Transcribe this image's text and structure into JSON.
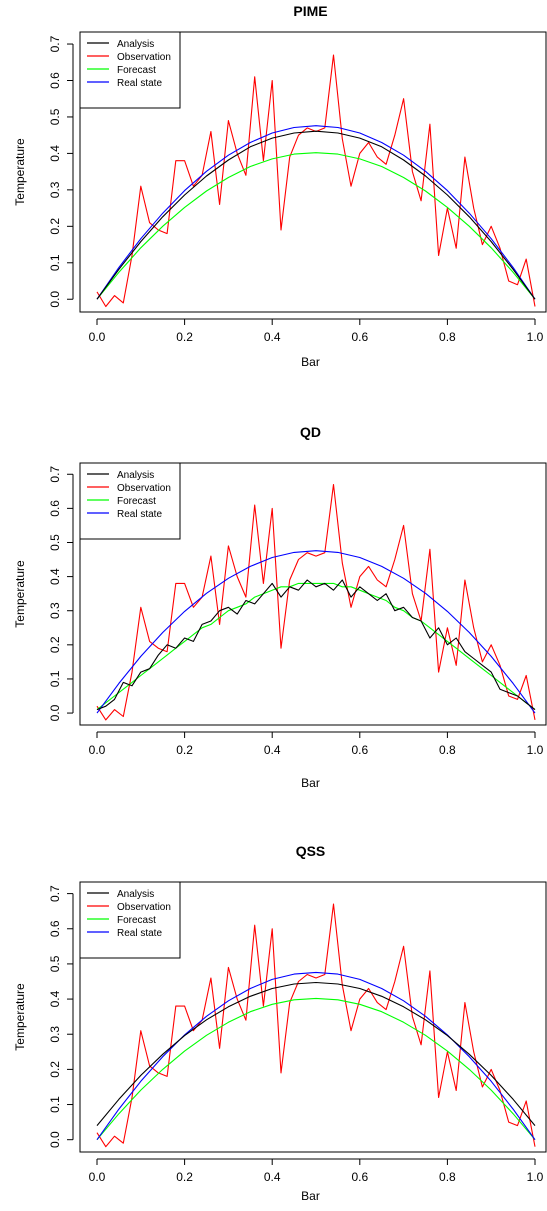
{
  "chart_data": [
    {
      "type": "line",
      "title": "PIME",
      "xlabel": "Bar",
      "ylabel": "Temperature",
      "xlim": [
        0,
        1
      ],
      "ylim": [
        0,
        0.72
      ],
      "xticks": [
        "0.0",
        "0.2",
        "0.4",
        "0.6",
        "0.8",
        "1.0"
      ],
      "yticks": [
        "0.0",
        "0.1",
        "0.2",
        "0.3",
        "0.4",
        "0.5",
        "0.6",
        "0.7"
      ],
      "legend_position": "top-left",
      "grid": false,
      "series": [
        {
          "name": "Analysis",
          "color": "#000000",
          "x": [
            0,
            0.05,
            0.1,
            0.15,
            0.2,
            0.25,
            0.3,
            0.35,
            0.4,
            0.45,
            0.5,
            0.55,
            0.6,
            0.65,
            0.7,
            0.75,
            0.8,
            0.85,
            0.9,
            0.95,
            1
          ],
          "y": [
            0,
            0.082,
            0.158,
            0.226,
            0.286,
            0.338,
            0.382,
            0.418,
            0.442,
            0.456,
            0.461,
            0.456,
            0.442,
            0.418,
            0.382,
            0.338,
            0.286,
            0.226,
            0.158,
            0.082,
            0
          ]
        },
        {
          "name": "Observation",
          "color": "#ff0000",
          "x": [
            0,
            0.02,
            0.04,
            0.06,
            0.08,
            0.1,
            0.12,
            0.14,
            0.16,
            0.18,
            0.2,
            0.22,
            0.24,
            0.26,
            0.28,
            0.3,
            0.32,
            0.34,
            0.36,
            0.38,
            0.4,
            0.42,
            0.44,
            0.46,
            0.48,
            0.5,
            0.52,
            0.54,
            0.56,
            0.58,
            0.6,
            0.62,
            0.64,
            0.66,
            0.68,
            0.7,
            0.72,
            0.74,
            0.76,
            0.78,
            0.8,
            0.82,
            0.84,
            0.86,
            0.88,
            0.9,
            0.92,
            0.94,
            0.96,
            0.98,
            1
          ],
          "y": [
            0.02,
            -0.02,
            0.01,
            -0.01,
            0.12,
            0.31,
            0.21,
            0.19,
            0.18,
            0.38,
            0.38,
            0.31,
            0.34,
            0.46,
            0.26,
            0.49,
            0.4,
            0.34,
            0.61,
            0.38,
            0.6,
            0.19,
            0.39,
            0.45,
            0.47,
            0.46,
            0.47,
            0.67,
            0.44,
            0.31,
            0.4,
            0.43,
            0.39,
            0.37,
            0.45,
            0.55,
            0.35,
            0.27,
            0.48,
            0.12,
            0.25,
            0.14,
            0.39,
            0.25,
            0.15,
            0.2,
            0.14,
            0.05,
            0.04,
            0.11,
            -0.02
          ]
        },
        {
          "name": "Forecast",
          "color": "#00ff00",
          "x": [
            0,
            0.05,
            0.1,
            0.15,
            0.2,
            0.25,
            0.3,
            0.35,
            0.4,
            0.45,
            0.5,
            0.55,
            0.6,
            0.65,
            0.7,
            0.75,
            0.8,
            0.85,
            0.9,
            0.95,
            1
          ],
          "y": [
            0,
            0.074,
            0.141,
            0.2,
            0.252,
            0.297,
            0.334,
            0.364,
            0.385,
            0.398,
            0.402,
            0.398,
            0.385,
            0.364,
            0.334,
            0.297,
            0.252,
            0.2,
            0.141,
            0.074,
            0
          ]
        },
        {
          "name": "Real state",
          "color": "#0000ff",
          "x": [
            0,
            0.05,
            0.1,
            0.15,
            0.2,
            0.25,
            0.3,
            0.35,
            0.4,
            0.45,
            0.5,
            0.55,
            0.6,
            0.65,
            0.7,
            0.75,
            0.8,
            0.85,
            0.9,
            0.95,
            1
          ],
          "y": [
            0,
            0.087,
            0.166,
            0.236,
            0.298,
            0.351,
            0.395,
            0.43,
            0.456,
            0.471,
            0.476,
            0.471,
            0.456,
            0.43,
            0.395,
            0.351,
            0.298,
            0.236,
            0.166,
            0.087,
            0
          ]
        }
      ]
    },
    {
      "type": "line",
      "title": "QD",
      "xlabel": "Bar",
      "ylabel": "Temperature",
      "xlim": [
        0,
        1
      ],
      "ylim": [
        0,
        0.72
      ],
      "xticks": [
        "0.0",
        "0.2",
        "0.4",
        "0.6",
        "0.8",
        "1.0"
      ],
      "yticks": [
        "0.0",
        "0.1",
        "0.2",
        "0.3",
        "0.4",
        "0.5",
        "0.6",
        "0.7"
      ],
      "legend_position": "top-left",
      "grid": false,
      "series": [
        {
          "name": "Analysis",
          "color": "#000000",
          "x": [
            0,
            0.02,
            0.04,
            0.06,
            0.08,
            0.1,
            0.12,
            0.14,
            0.16,
            0.18,
            0.2,
            0.22,
            0.24,
            0.26,
            0.28,
            0.3,
            0.32,
            0.34,
            0.36,
            0.38,
            0.4,
            0.42,
            0.44,
            0.46,
            0.48,
            0.5,
            0.52,
            0.54,
            0.56,
            0.58,
            0.6,
            0.62,
            0.64,
            0.66,
            0.68,
            0.7,
            0.72,
            0.74,
            0.76,
            0.78,
            0.8,
            0.82,
            0.84,
            0.86,
            0.88,
            0.9,
            0.92,
            0.94,
            0.96,
            0.98,
            1
          ],
          "y": [
            0.01,
            0.02,
            0.04,
            0.09,
            0.08,
            0.12,
            0.13,
            0.17,
            0.2,
            0.19,
            0.22,
            0.21,
            0.26,
            0.27,
            0.3,
            0.31,
            0.29,
            0.33,
            0.32,
            0.35,
            0.38,
            0.34,
            0.37,
            0.36,
            0.39,
            0.37,
            0.38,
            0.36,
            0.39,
            0.34,
            0.37,
            0.35,
            0.33,
            0.35,
            0.3,
            0.31,
            0.28,
            0.27,
            0.22,
            0.25,
            0.2,
            0.22,
            0.18,
            0.16,
            0.14,
            0.12,
            0.07,
            0.06,
            0.05,
            0.03,
            0.01
          ]
        },
        {
          "name": "Observation",
          "color": "#ff0000",
          "x": [
            0,
            0.02,
            0.04,
            0.06,
            0.08,
            0.1,
            0.12,
            0.14,
            0.16,
            0.18,
            0.2,
            0.22,
            0.24,
            0.26,
            0.28,
            0.3,
            0.32,
            0.34,
            0.36,
            0.38,
            0.4,
            0.42,
            0.44,
            0.46,
            0.48,
            0.5,
            0.52,
            0.54,
            0.56,
            0.58,
            0.6,
            0.62,
            0.64,
            0.66,
            0.68,
            0.7,
            0.72,
            0.74,
            0.76,
            0.78,
            0.8,
            0.82,
            0.84,
            0.86,
            0.88,
            0.9,
            0.92,
            0.94,
            0.96,
            0.98,
            1
          ],
          "y": [
            0.02,
            -0.02,
            0.01,
            -0.01,
            0.12,
            0.31,
            0.21,
            0.19,
            0.18,
            0.38,
            0.38,
            0.31,
            0.34,
            0.46,
            0.26,
            0.49,
            0.4,
            0.34,
            0.61,
            0.38,
            0.6,
            0.19,
            0.39,
            0.45,
            0.47,
            0.46,
            0.47,
            0.67,
            0.44,
            0.31,
            0.4,
            0.43,
            0.39,
            0.37,
            0.45,
            0.55,
            0.35,
            0.27,
            0.48,
            0.12,
            0.25,
            0.14,
            0.39,
            0.25,
            0.15,
            0.2,
            0.14,
            0.05,
            0.04,
            0.11,
            -0.02
          ]
        },
        {
          "name": "Forecast",
          "color": "#00ff00",
          "x": [
            0,
            0.02,
            0.04,
            0.06,
            0.08,
            0.1,
            0.12,
            0.14,
            0.16,
            0.18,
            0.2,
            0.22,
            0.24,
            0.26,
            0.28,
            0.3,
            0.32,
            0.34,
            0.36,
            0.38,
            0.4,
            0.42,
            0.44,
            0.46,
            0.48,
            0.5,
            0.52,
            0.54,
            0.56,
            0.58,
            0.6,
            0.62,
            0.64,
            0.66,
            0.68,
            0.7,
            0.72,
            0.74,
            0.76,
            0.78,
            0.8,
            0.82,
            0.84,
            0.86,
            0.88,
            0.9,
            0.92,
            0.94,
            0.96,
            0.98,
            1
          ],
          "y": [
            0.01,
            0.03,
            0.05,
            0.07,
            0.09,
            0.11,
            0.13,
            0.15,
            0.17,
            0.19,
            0.21,
            0.23,
            0.25,
            0.26,
            0.28,
            0.3,
            0.31,
            0.32,
            0.34,
            0.35,
            0.36,
            0.37,
            0.37,
            0.38,
            0.38,
            0.38,
            0.38,
            0.38,
            0.37,
            0.37,
            0.36,
            0.35,
            0.34,
            0.33,
            0.31,
            0.3,
            0.28,
            0.27,
            0.25,
            0.23,
            0.21,
            0.19,
            0.17,
            0.15,
            0.13,
            0.11,
            0.09,
            0.07,
            0.05,
            0.03,
            0.01
          ]
        },
        {
          "name": "Real state",
          "color": "#0000ff",
          "x": [
            0,
            0.05,
            0.1,
            0.15,
            0.2,
            0.25,
            0.3,
            0.35,
            0.4,
            0.45,
            0.5,
            0.55,
            0.6,
            0.65,
            0.7,
            0.75,
            0.8,
            0.85,
            0.9,
            0.95,
            1
          ],
          "y": [
            0,
            0.087,
            0.166,
            0.236,
            0.298,
            0.351,
            0.395,
            0.43,
            0.456,
            0.471,
            0.476,
            0.471,
            0.456,
            0.43,
            0.395,
            0.351,
            0.298,
            0.236,
            0.166,
            0.087,
            0
          ]
        }
      ]
    },
    {
      "type": "line",
      "title": "QSS",
      "xlabel": "Bar",
      "ylabel": "Temperature",
      "xlim": [
        0,
        1
      ],
      "ylim": [
        0,
        0.72
      ],
      "xticks": [
        "0.0",
        "0.2",
        "0.4",
        "0.6",
        "0.8",
        "1.0"
      ],
      "yticks": [
        "0.0",
        "0.1",
        "0.2",
        "0.3",
        "0.4",
        "0.5",
        "0.6",
        "0.7"
      ],
      "legend_position": "top-left",
      "grid": false,
      "series": [
        {
          "name": "Analysis",
          "color": "#000000",
          "x": [
            0,
            0.05,
            0.1,
            0.15,
            0.2,
            0.25,
            0.3,
            0.35,
            0.4,
            0.45,
            0.5,
            0.55,
            0.6,
            0.65,
            0.7,
            0.75,
            0.8,
            0.85,
            0.9,
            0.95,
            1
          ],
          "y": [
            0.04,
            0.115,
            0.183,
            0.243,
            0.296,
            0.341,
            0.378,
            0.408,
            0.43,
            0.443,
            0.447,
            0.443,
            0.43,
            0.408,
            0.378,
            0.341,
            0.296,
            0.243,
            0.183,
            0.115,
            0.04
          ]
        },
        {
          "name": "Observation",
          "color": "#ff0000",
          "x": [
            0,
            0.02,
            0.04,
            0.06,
            0.08,
            0.1,
            0.12,
            0.14,
            0.16,
            0.18,
            0.2,
            0.22,
            0.24,
            0.26,
            0.28,
            0.3,
            0.32,
            0.34,
            0.36,
            0.38,
            0.4,
            0.42,
            0.44,
            0.46,
            0.48,
            0.5,
            0.52,
            0.54,
            0.56,
            0.58,
            0.6,
            0.62,
            0.64,
            0.66,
            0.68,
            0.7,
            0.72,
            0.74,
            0.76,
            0.78,
            0.8,
            0.82,
            0.84,
            0.86,
            0.88,
            0.9,
            0.92,
            0.94,
            0.96,
            0.98,
            1
          ],
          "y": [
            0.02,
            -0.02,
            0.01,
            -0.01,
            0.12,
            0.31,
            0.21,
            0.19,
            0.18,
            0.38,
            0.38,
            0.31,
            0.34,
            0.46,
            0.26,
            0.49,
            0.4,
            0.34,
            0.61,
            0.38,
            0.6,
            0.19,
            0.39,
            0.45,
            0.47,
            0.46,
            0.47,
            0.67,
            0.44,
            0.31,
            0.4,
            0.43,
            0.39,
            0.37,
            0.45,
            0.55,
            0.35,
            0.27,
            0.48,
            0.12,
            0.25,
            0.14,
            0.39,
            0.25,
            0.15,
            0.2,
            0.14,
            0.05,
            0.04,
            0.11,
            -0.02
          ]
        },
        {
          "name": "Forecast",
          "color": "#00ff00",
          "x": [
            0,
            0.05,
            0.1,
            0.15,
            0.2,
            0.25,
            0.3,
            0.35,
            0.4,
            0.45,
            0.5,
            0.55,
            0.6,
            0.65,
            0.7,
            0.75,
            0.8,
            0.85,
            0.9,
            0.95,
            1
          ],
          "y": [
            0,
            0.074,
            0.141,
            0.2,
            0.252,
            0.297,
            0.334,
            0.364,
            0.385,
            0.398,
            0.402,
            0.398,
            0.385,
            0.364,
            0.334,
            0.297,
            0.252,
            0.2,
            0.141,
            0.074,
            0
          ]
        },
        {
          "name": "Real state",
          "color": "#0000ff",
          "x": [
            0,
            0.05,
            0.1,
            0.15,
            0.2,
            0.25,
            0.3,
            0.35,
            0.4,
            0.45,
            0.5,
            0.55,
            0.6,
            0.65,
            0.7,
            0.75,
            0.8,
            0.85,
            0.9,
            0.95,
            1
          ],
          "y": [
            0,
            0.087,
            0.166,
            0.236,
            0.298,
            0.351,
            0.395,
            0.43,
            0.456,
            0.471,
            0.476,
            0.471,
            0.456,
            0.43,
            0.395,
            0.351,
            0.298,
            0.236,
            0.166,
            0.087,
            0
          ]
        }
      ]
    }
  ]
}
